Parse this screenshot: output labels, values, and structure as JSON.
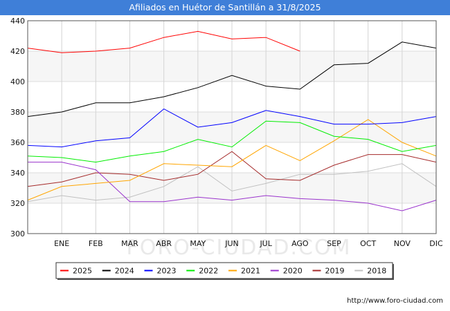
{
  "chart_data": {
    "type": "line",
    "title": "Afiliados en Huétor de Santillán a 31/8/2025",
    "categories": [
      "",
      "ENE",
      "FEB",
      "MAR",
      "ABR",
      "MAY",
      "JUN",
      "JUL",
      "AGO",
      "SEP",
      "OCT",
      "NOV",
      "DIC"
    ],
    "ylim": [
      300,
      440
    ],
    "yticks": [
      300,
      320,
      340,
      360,
      380,
      400,
      420,
      440
    ],
    "grid": true,
    "legend_position": "bottom",
    "series": [
      {
        "name": "2025",
        "color": "#ff0000",
        "values": [
          422,
          419,
          420,
          422,
          429,
          433,
          428,
          429,
          420,
          null,
          null,
          null,
          null
        ]
      },
      {
        "name": "2024",
        "color": "#000000",
        "values": [
          377,
          380,
          386,
          386,
          390,
          396,
          404,
          397,
          395,
          411,
          412,
          426,
          422
        ]
      },
      {
        "name": "2023",
        "color": "#0000ff",
        "values": [
          358,
          357,
          361,
          363,
          382,
          370,
          373,
          381,
          377,
          372,
          372,
          373,
          377
        ]
      },
      {
        "name": "2022",
        "color": "#00ee00",
        "values": [
          351,
          350,
          347,
          351,
          354,
          362,
          357,
          374,
          373,
          364,
          362,
          354,
          358
        ]
      },
      {
        "name": "2021",
        "color": "#ffa500",
        "values": [
          322,
          331,
          333,
          335,
          346,
          345,
          344,
          358,
          348,
          361,
          375,
          360,
          351
        ]
      },
      {
        "name": "2020",
        "color": "#9932cc",
        "values": [
          347,
          347,
          342,
          321,
          321,
          324,
          322,
          325,
          323,
          322,
          320,
          315,
          322
        ]
      },
      {
        "name": "2019",
        "color": "#a52a2a",
        "values": [
          331,
          334,
          340,
          339,
          335,
          339,
          354,
          336,
          335,
          345,
          352,
          352,
          347
        ]
      },
      {
        "name": "2018",
        "color": "#c0c0c0",
        "values": [
          321,
          325,
          322,
          324,
          331,
          344,
          328,
          333,
          339,
          339,
          341,
          346,
          331
        ]
      }
    ]
  },
  "watermark": "FORO-CIUDAD.COM",
  "footer_url": "http://www.foro-ciudad.com"
}
